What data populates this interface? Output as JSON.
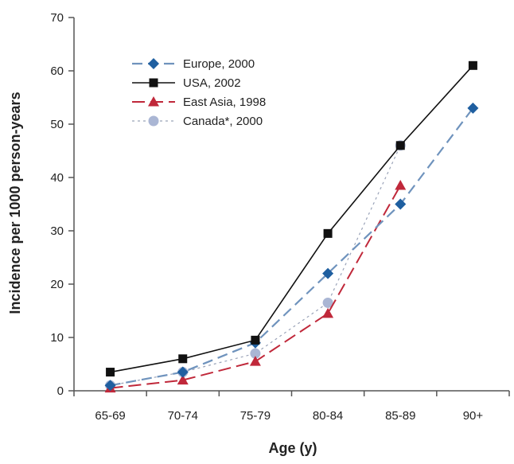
{
  "chart_data": {
    "type": "line",
    "title": "",
    "xlabel": "Age (y)",
    "ylabel": "Incidence per 1000 person-years",
    "categories": [
      "65-69",
      "70-74",
      "75-79",
      "80-84",
      "85-89",
      "90+"
    ],
    "ylim": [
      0,
      70
    ],
    "yticks": [
      0,
      10,
      20,
      30,
      40,
      50,
      60,
      70
    ],
    "grid": false,
    "legend_position": "top-left",
    "series": [
      {
        "name": "Europe, 2000",
        "values": [
          1.0,
          3.5,
          9.0,
          22.0,
          35.0,
          53.0
        ],
        "color": "#1f5fa0",
        "line_color": "#6f93bd",
        "dash": "dashed",
        "marker": "diamond"
      },
      {
        "name": "USA, 2002",
        "values": [
          3.5,
          6.0,
          9.5,
          29.5,
          46.0,
          61.0
        ],
        "color": "#111111",
        "line_color": "#111111",
        "dash": "solid",
        "marker": "square"
      },
      {
        "name": "East Asia, 1998",
        "values": [
          0.5,
          2.0,
          5.5,
          14.5,
          38.5,
          null
        ],
        "color": "#c0283a",
        "line_color": "#c0283a",
        "dash": "long-dash",
        "marker": "triangle"
      },
      {
        "name": "Canada*, 2000",
        "values": [
          1.0,
          3.5,
          7.0,
          16.5,
          46.0,
          null
        ],
        "color": "#aab6d4",
        "line_color": "#9aa3b8",
        "dash": "dotted",
        "marker": "circle"
      }
    ]
  }
}
